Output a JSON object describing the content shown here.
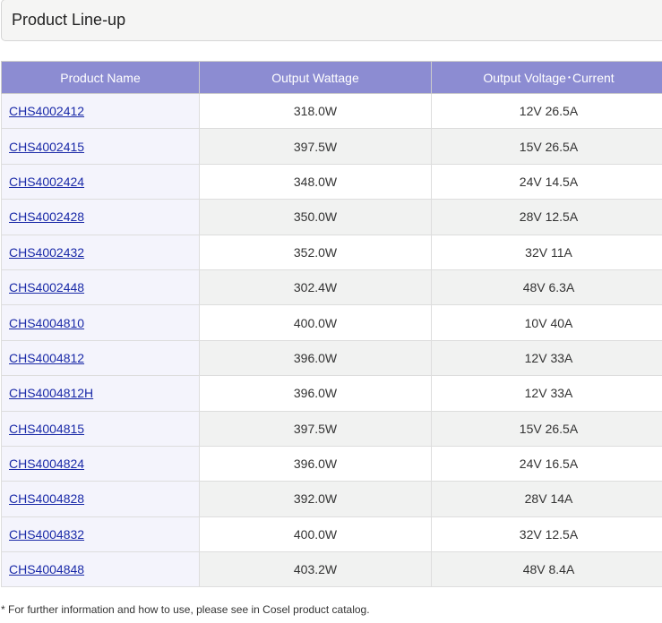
{
  "header": {
    "title": "Product Line-up"
  },
  "table": {
    "columns": [
      "Product Name",
      "Output Wattage",
      "Output Voltage･Current"
    ],
    "rows": [
      [
        "CHS4002412",
        "318.0W",
        "12V 26.5A"
      ],
      [
        "CHS4002415",
        "397.5W",
        "15V 26.5A"
      ],
      [
        "CHS4002424",
        "348.0W",
        "24V 14.5A"
      ],
      [
        "CHS4002428",
        "350.0W",
        "28V 12.5A"
      ],
      [
        "CHS4002432",
        "352.0W",
        "32V 11A"
      ],
      [
        "CHS4002448",
        "302.4W",
        "48V 6.3A"
      ],
      [
        "CHS4004810",
        "400.0W",
        "10V 40A"
      ],
      [
        "CHS4004812",
        "396.0W",
        "12V 33A"
      ],
      [
        "CHS4004812H",
        "396.0W",
        "12V 33A"
      ],
      [
        "CHS4004815",
        "397.5W",
        "15V 26.5A"
      ],
      [
        "CHS4004824",
        "396.0W",
        "24V 16.5A"
      ],
      [
        "CHS4004828",
        "392.0W",
        "28V 14A"
      ],
      [
        "CHS4004832",
        "400.0W",
        "32V 12.5A"
      ],
      [
        "CHS4004848",
        "403.2W",
        "48V 8.4A"
      ]
    ]
  },
  "footnote": "* For further information and how to use, please see in Cosel product catalog."
}
